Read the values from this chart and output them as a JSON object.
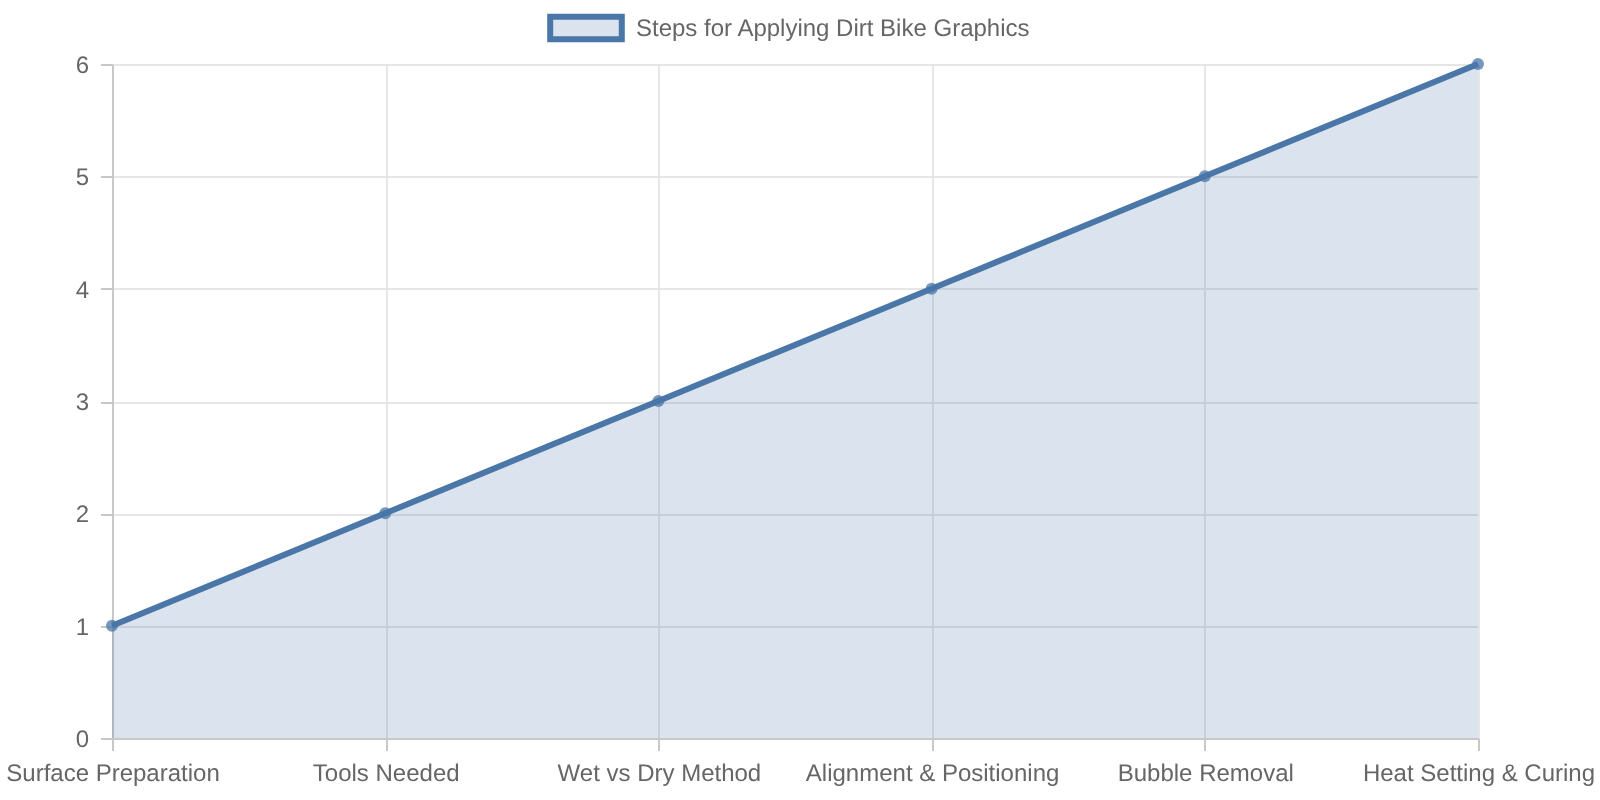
{
  "chart_data": {
    "type": "area",
    "categories": [
      "Surface Preparation",
      "Tools Needed",
      "Wet vs Dry Method",
      "Alignment & Positioning",
      "Bubble Removal",
      "Heat Setting & Curing"
    ],
    "series": [
      {
        "name": "Steps for Applying Dirt Bike Graphics",
        "color": "#4a76a8",
        "values": [
          1,
          2,
          3,
          4,
          5,
          6
        ]
      }
    ],
    "ylim": [
      0,
      6
    ],
    "yticks": [
      0,
      1,
      2,
      3,
      4,
      5,
      6
    ],
    "grid": true,
    "legend": "top",
    "marker": "circle"
  }
}
